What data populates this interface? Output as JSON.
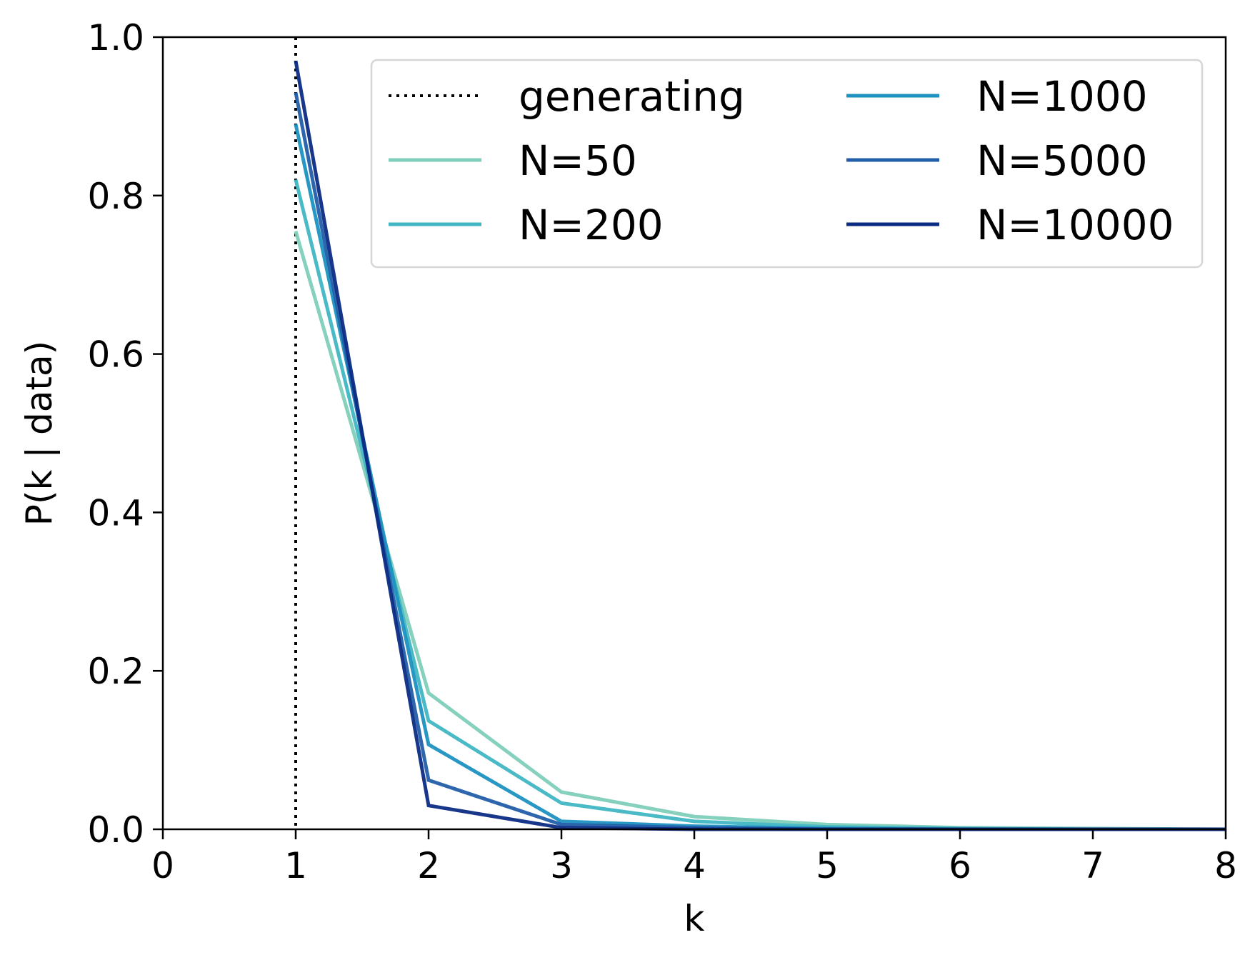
{
  "chart_data": {
    "type": "line",
    "xlabel": "k",
    "ylabel": "P(k | data)",
    "xlim": [
      0,
      8
    ],
    "ylim": [
      0,
      1.0
    ],
    "xticks": [
      0,
      1,
      2,
      3,
      4,
      5,
      6,
      7,
      8
    ],
    "xtick_labels": [
      "0",
      "1",
      "2",
      "3",
      "4",
      "5",
      "6",
      "7",
      "8"
    ],
    "yticks": [
      0,
      0.2,
      0.4,
      0.6,
      0.8,
      1.0
    ],
    "ytick_labels": [
      "0.0",
      "0.2",
      "0.4",
      "0.6",
      "0.8",
      "1.0"
    ],
    "grid": false,
    "legend_position": "top-right",
    "legend_columns": 2,
    "generating": {
      "name": "generating",
      "x": 1,
      "style": "dotted",
      "color": "#000000"
    },
    "x": [
      1,
      2,
      3,
      4,
      5,
      6,
      7,
      8
    ],
    "series": [
      {
        "name": "N=50",
        "color": "#7fcdbb",
        "values": [
          0.755,
          0.172,
          0.047,
          0.016,
          0.006,
          0.002,
          0.001,
          0.0
        ]
      },
      {
        "name": "N=200",
        "color": "#41b6c4",
        "values": [
          0.82,
          0.137,
          0.033,
          0.01,
          0.003,
          0.001,
          0.0,
          0.0
        ]
      },
      {
        "name": "N=1000",
        "color": "#1d91c0",
        "values": [
          0.89,
          0.107,
          0.01,
          0.004,
          0.001,
          0.0,
          0.0,
          0.0
        ]
      },
      {
        "name": "N=5000",
        "color": "#225ea8",
        "values": [
          0.93,
          0.062,
          0.006,
          0.002,
          0.0,
          0.0,
          0.0,
          0.0
        ]
      },
      {
        "name": "N=10000",
        "color": "#0c2c84",
        "values": [
          0.97,
          0.03,
          0.002,
          0.0,
          0.0,
          0.0,
          0.0,
          0.0
        ]
      }
    ]
  }
}
